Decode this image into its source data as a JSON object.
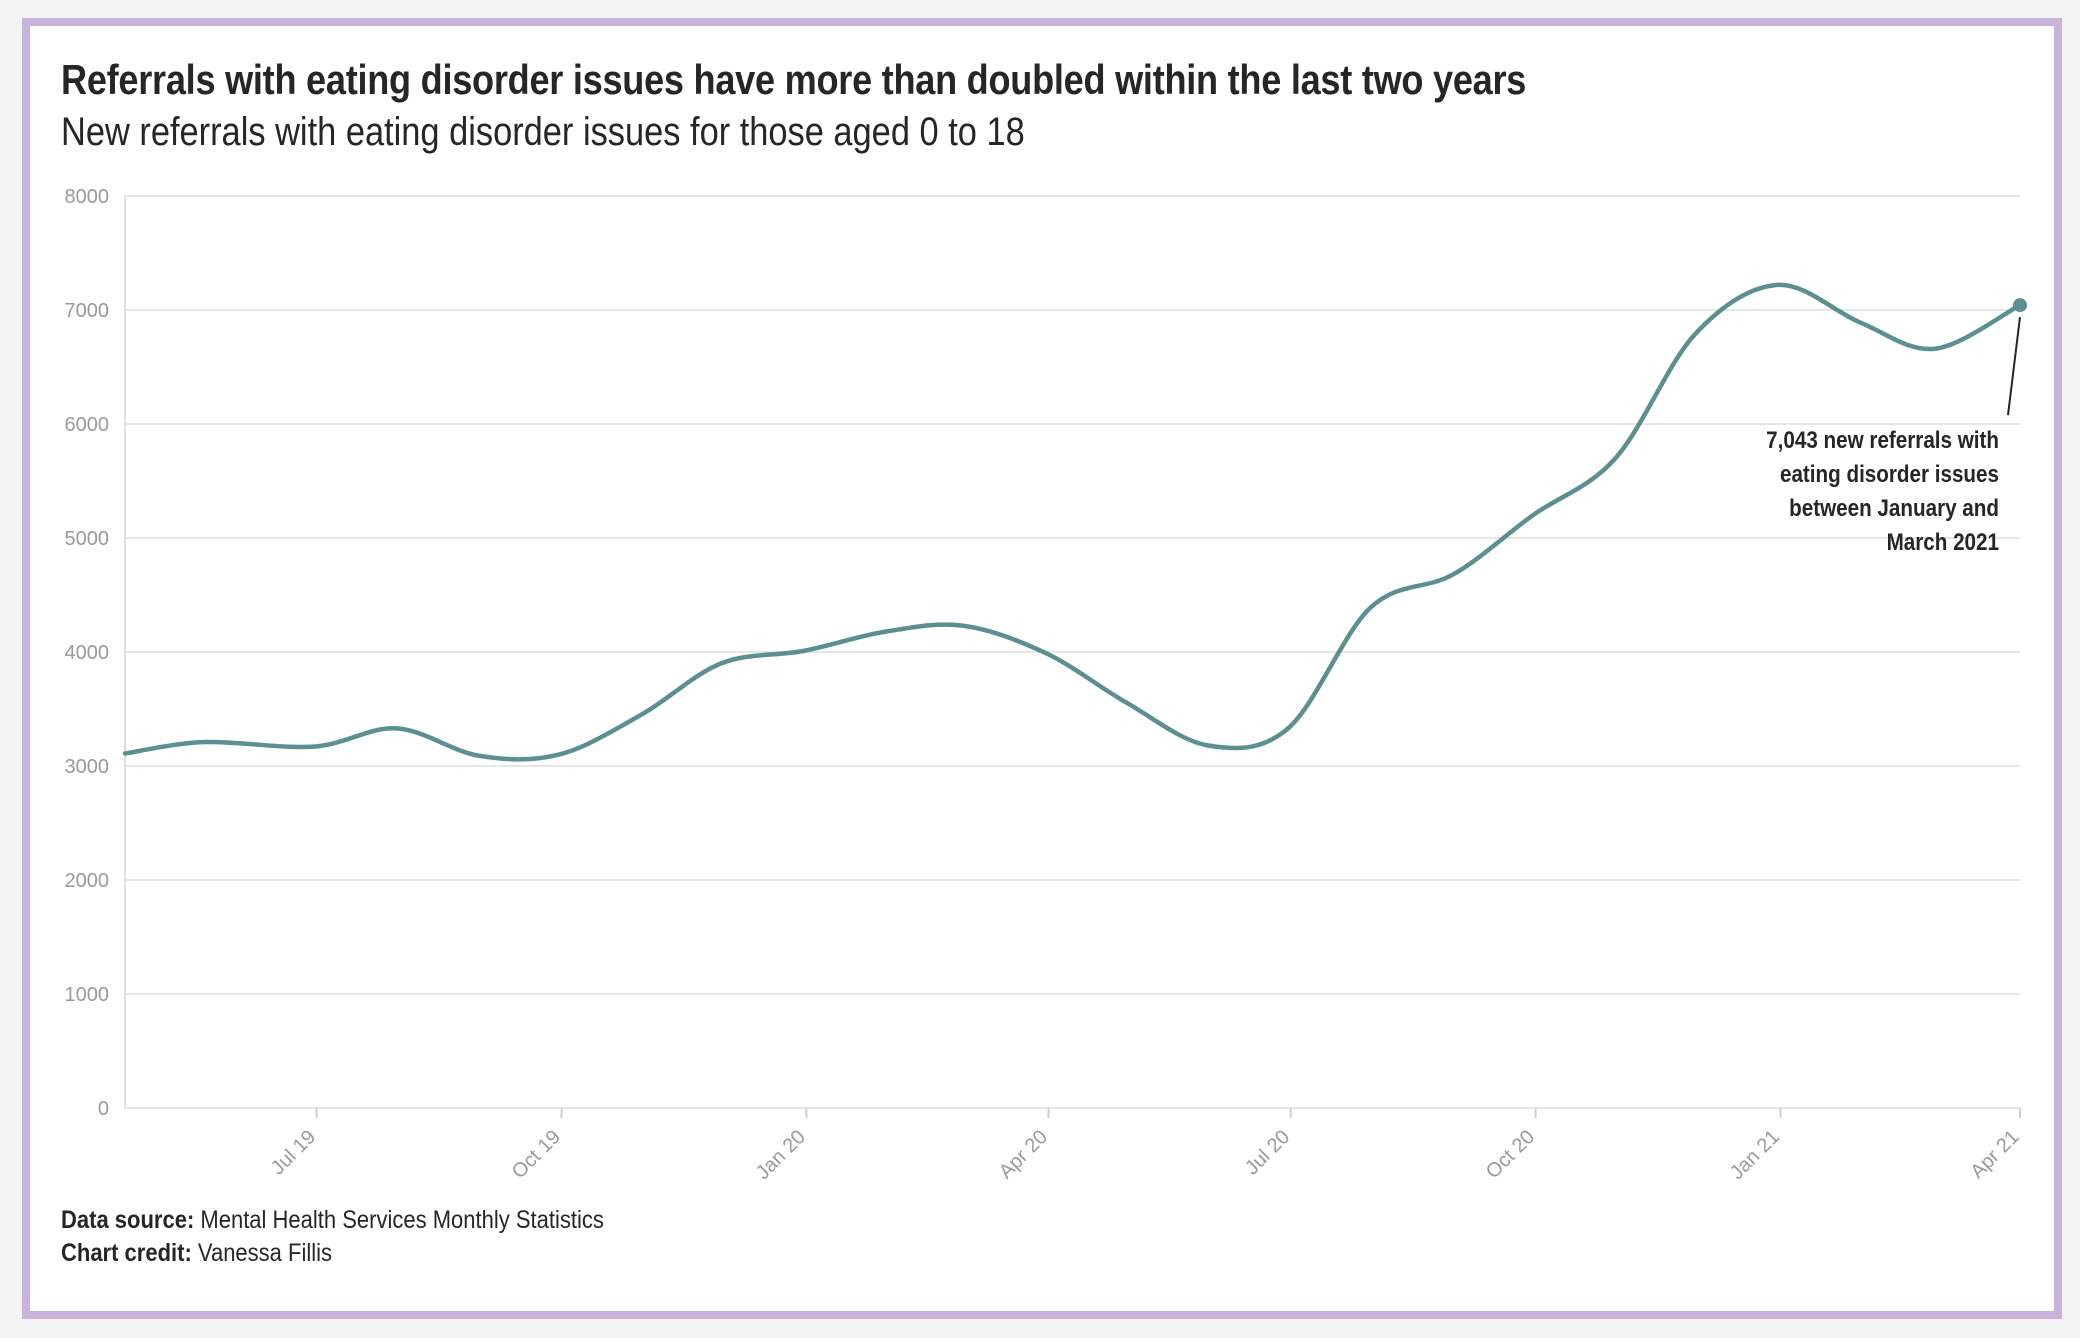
{
  "colors": {
    "frame": "#c9b3d9",
    "line": "#5b8f90",
    "grid": "#e6e6e6",
    "tick_text": "#9a9a9a",
    "text": "#262626"
  },
  "chart_data": {
    "type": "line",
    "title": "Referrals with eating disorder issues have more than doubled within the last two years",
    "subtitle": "New referrals with eating disorder issues for those aged 0 to 18",
    "xlabel": "",
    "ylabel": "",
    "ylim": [
      0,
      8000
    ],
    "yticks": [
      0,
      1000,
      2000,
      3000,
      4000,
      5000,
      6000,
      7000,
      8000
    ],
    "xticks": [
      {
        "date": "2019-07-01",
        "label": "Jul 19"
      },
      {
        "date": "2019-10-01",
        "label": "Oct 19"
      },
      {
        "date": "2020-01-01",
        "label": "Jan 20"
      },
      {
        "date": "2020-04-01",
        "label": "Apr 20"
      },
      {
        "date": "2020-07-01",
        "label": "Jul 20"
      },
      {
        "date": "2020-10-01",
        "label": "Oct 20"
      },
      {
        "date": "2021-01-01",
        "label": "Jan 21"
      },
      {
        "date": "2021-04-01",
        "label": "Apr 21"
      }
    ],
    "xlim": [
      "2019-04-20",
      "2021-04-01"
    ],
    "grid": true,
    "series": [
      {
        "values": [
          {
            "x": "2019-04-20",
            "y": 3110
          },
          {
            "x": "2019-05-20",
            "y": 3210
          },
          {
            "x": "2019-06-30",
            "y": 3170
          },
          {
            "x": "2019-07-31",
            "y": 3330
          },
          {
            "x": "2019-08-31",
            "y": 3090
          },
          {
            "x": "2019-09-30",
            "y": 3100
          },
          {
            "x": "2019-10-31",
            "y": 3450
          },
          {
            "x": "2019-11-30",
            "y": 3900
          },
          {
            "x": "2019-12-31",
            "y": 4010
          },
          {
            "x": "2020-01-31",
            "y": 4180
          },
          {
            "x": "2020-02-29",
            "y": 4230
          },
          {
            "x": "2020-03-31",
            "y": 3990
          },
          {
            "x": "2020-04-30",
            "y": 3560
          },
          {
            "x": "2020-05-31",
            "y": 3180
          },
          {
            "x": "2020-06-30",
            "y": 3330
          },
          {
            "x": "2020-07-31",
            "y": 4390
          },
          {
            "x": "2020-08-31",
            "y": 4680
          },
          {
            "x": "2020-09-30",
            "y": 5200
          },
          {
            "x": "2020-10-31",
            "y": 5700
          },
          {
            "x": "2020-11-30",
            "y": 6790
          },
          {
            "x": "2020-12-31",
            "y": 7220
          },
          {
            "x": "2021-01-31",
            "y": 6890
          },
          {
            "x": "2021-02-28",
            "y": 6660
          },
          {
            "x": "2021-04-01",
            "y": 7043
          }
        ]
      }
    ],
    "annotation": {
      "lines": [
        "7,043 new referrals with",
        "eating disorder issues",
        "between January and",
        "March 2021"
      ]
    }
  },
  "footer": {
    "source_label": "Data source:",
    "source_value": "Mental Health Services Monthly Statistics",
    "credit_label": "Chart credit:",
    "credit_value": "Vanessa Fillis"
  }
}
